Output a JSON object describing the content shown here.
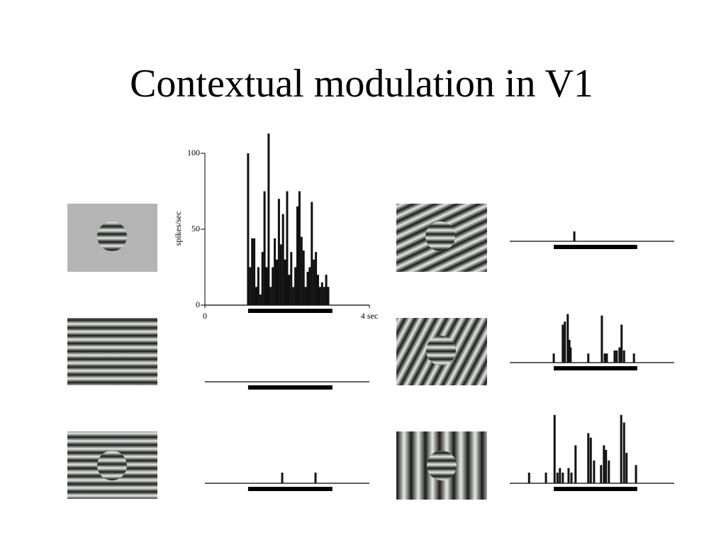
{
  "title": "Contextual modulation in V1",
  "chart_data": [
    {
      "type": "bar",
      "color": "#111111",
      "y_label": "spikes/sec",
      "xlim": [
        0,
        4
      ],
      "xticks": [
        0,
        {
          "value": 4,
          "label": "4 sec"
        }
      ],
      "ylim": [
        0,
        100
      ],
      "yticks": [
        0,
        50,
        100
      ],
      "stimulus": [
        1.05,
        3.1
      ],
      "x": [
        1.05,
        1.1,
        1.15,
        1.2,
        1.25,
        1.3,
        1.35,
        1.4,
        1.45,
        1.5,
        1.55,
        1.6,
        1.65,
        1.7,
        1.75,
        1.8,
        1.85,
        1.9,
        1.95,
        2.0,
        2.05,
        2.1,
        2.15,
        2.2,
        2.25,
        2.3,
        2.35,
        2.4,
        2.45,
        2.5,
        2.55,
        2.6,
        2.65,
        2.7,
        2.75,
        2.8,
        2.85,
        2.9,
        2.95,
        3.0
      ],
      "values": [
        100,
        25,
        44,
        44,
        12,
        25,
        7,
        35,
        75,
        25,
        113,
        12,
        25,
        44,
        30,
        70,
        40,
        60,
        30,
        75,
        20,
        35,
        12,
        25,
        65,
        75,
        45,
        36,
        12,
        22,
        25,
        68,
        30,
        35,
        20,
        12,
        15,
        12,
        20,
        12
      ]
    },
    {
      "type": "bar",
      "color": "#111111",
      "stimulus": [
        1.05,
        3.1
      ],
      "x": [],
      "values": []
    },
    {
      "type": "bar",
      "color": "#111111",
      "stimulus": [
        1.05,
        3.1
      ],
      "x": [
        1.88,
        2.69
      ],
      "values": [
        7,
        7
      ]
    },
    {
      "type": "bar",
      "color": "#111111",
      "stimulus": [
        1.07,
        3.1
      ],
      "x": [
        1.57
      ],
      "values": [
        6.5
      ]
    },
    {
      "type": "bar",
      "color": "#111111",
      "stimulus": [
        1.07,
        3.1
      ],
      "x": [
        1.07,
        1.29,
        1.34,
        1.41,
        1.45,
        1.48,
        1.91,
        2.24,
        2.31,
        2.36,
        2.55,
        2.6,
        2.67,
        2.72,
        2.78,
        3.02
      ],
      "values": [
        6,
        25,
        27,
        32,
        15,
        10,
        6,
        31,
        6,
        6,
        8,
        8,
        10,
        25,
        8,
        6
      ]
    },
    {
      "type": "bar",
      "color": "#111111",
      "stimulus": [
        1.07,
        3.1
      ],
      "x": [
        0.47,
        0.88,
        1.09,
        1.16,
        1.22,
        1.29,
        1.43,
        1.5,
        1.6,
        1.91,
        1.97,
        2.05,
        2.22,
        2.29,
        2.34,
        2.41,
        2.71,
        2.78,
        2.84,
        3.07
      ],
      "values": [
        7,
        7,
        45,
        7,
        10,
        7,
        10,
        7,
        25,
        33,
        30,
        15,
        12,
        25,
        22,
        15,
        45,
        40,
        20,
        12
      ]
    }
  ]
}
